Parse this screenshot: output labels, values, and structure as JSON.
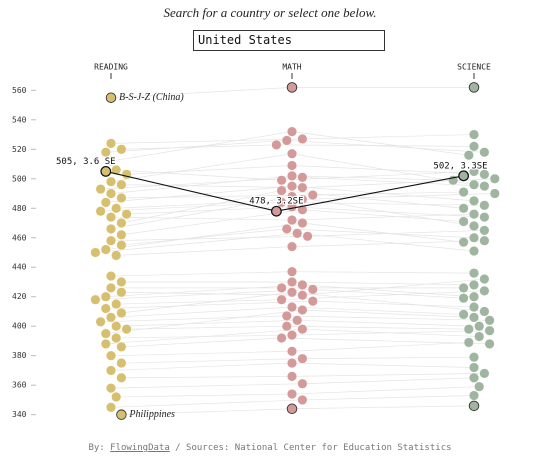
{
  "search_prompt": "Search for a country or select one below.",
  "search_value": "United States",
  "chart_data": {
    "type": "beeswarm",
    "series": [
      {
        "name": "READING",
        "color": "#d6c070",
        "values": [
          555,
          340,
          505,
          524,
          520,
          518,
          512,
          506,
          503,
          498,
          496,
          493,
          490,
          487,
          484,
          480,
          478,
          476,
          474,
          470,
          466,
          462,
          458,
          455,
          452,
          450,
          448,
          434,
          430,
          426,
          423,
          420,
          418,
          415,
          412,
          409,
          406,
          403,
          400,
          398,
          395,
          392,
          388,
          386,
          380,
          375,
          370,
          365,
          358,
          352,
          345
        ]
      },
      {
        "name": "MATH",
        "color": "#d49a9a",
        "values": [
          562,
          344,
          478,
          527,
          523,
          526,
          532,
          499,
          509,
          517,
          494,
          501,
          502,
          489,
          495,
          486,
          484,
          481,
          472,
          492,
          488,
          479,
          461,
          466,
          470,
          463,
          454,
          437,
          430,
          426,
          421,
          428,
          425,
          418,
          417,
          423,
          413,
          407,
          404,
          400,
          411,
          394,
          398,
          392,
          383,
          378,
          375,
          366,
          361,
          354,
          350
        ]
      },
      {
        "name": "SCIENCE",
        "color": "#9fb5a0",
        "values": [
          562,
          346,
          502,
          530,
          522,
          518,
          516,
          505,
          503,
          496,
          500,
          495,
          499,
          491,
          485,
          490,
          482,
          474,
          476,
          480,
          468,
          471,
          465,
          460,
          457,
          451,
          458,
          436,
          428,
          426,
          432,
          420,
          419,
          424,
          413,
          410,
          408,
          404,
          400,
          398,
          406,
          397,
          393,
          388,
          389,
          379,
          372,
          368,
          365,
          359,
          353
        ]
      }
    ],
    "ylim": [
      333,
      567
    ],
    "yticks": [
      340,
      360,
      380,
      400,
      420,
      440,
      460,
      480,
      500,
      520,
      540,
      560
    ],
    "highlight": {
      "index": 2,
      "labels": [
        "505, 3.6 SE",
        "478, 3.2SE",
        "502, 3.3SE"
      ]
    },
    "annotations": [
      {
        "index": 0,
        "text": "B-S-J-Z (China)"
      },
      {
        "index": 1,
        "text": "Philippines"
      }
    ]
  },
  "footer": {
    "by": "By: ",
    "link": "FlowingData",
    "sources": " / Sources: National Center for Education Statistics"
  }
}
